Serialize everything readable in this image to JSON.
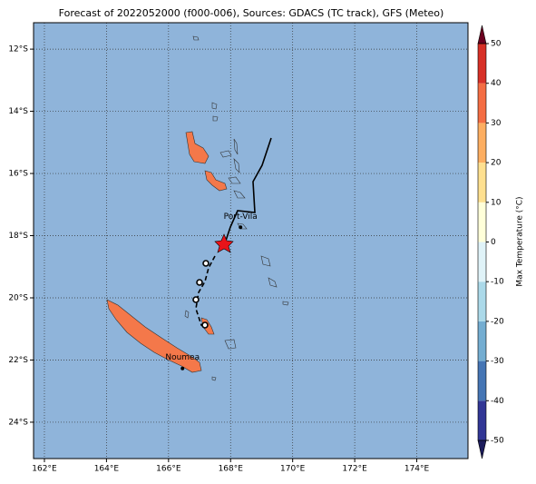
{
  "title": "Forecast of 2022052000 (f000-006), Sources: GDACS (TC track), GFS (Meteo)",
  "map": {
    "xlim": [
      161.65,
      175.65
    ],
    "ylim": [
      -25.17,
      -11.15
    ],
    "xticks": [
      {
        "value": 162,
        "label": "162°E"
      },
      {
        "value": 164,
        "label": "164°E"
      },
      {
        "value": 166,
        "label": "166°E"
      },
      {
        "value": 168,
        "label": "168°E"
      },
      {
        "value": 170,
        "label": "170°E"
      },
      {
        "value": 172,
        "label": "172°E"
      },
      {
        "value": 174,
        "label": "174°E"
      }
    ],
    "yticks": [
      {
        "value": -12,
        "label": "12°S"
      },
      {
        "value": -14,
        "label": "14°S"
      },
      {
        "value": -16,
        "label": "16°S"
      },
      {
        "value": -18,
        "label": "18°S"
      },
      {
        "value": -20,
        "label": "20°S"
      },
      {
        "value": -22,
        "label": "22°S"
      },
      {
        "value": -24,
        "label": "24°S"
      }
    ],
    "grid": true,
    "places": [
      {
        "name": "Port-Vila",
        "lon": 168.32,
        "lat": -17.73
      },
      {
        "name": "Noumea",
        "lon": 166.45,
        "lat": -22.27
      }
    ]
  },
  "colorbar": {
    "label": "Max Temperature (°C)",
    "ticks": [
      -50,
      -40,
      -30,
      -20,
      -10,
      0,
      10,
      20,
      30,
      40,
      50
    ],
    "colors": [
      "#313695",
      "#4575b4",
      "#74add1",
      "#abd9e9",
      "#e0f3f8",
      "#ffffd9",
      "#fee090",
      "#fdae61",
      "#f46d43",
      "#d73027",
      "#a50026"
    ],
    "extend_colors": [
      "#1c1c5c",
      "#6b0020"
    ]
  }
}
